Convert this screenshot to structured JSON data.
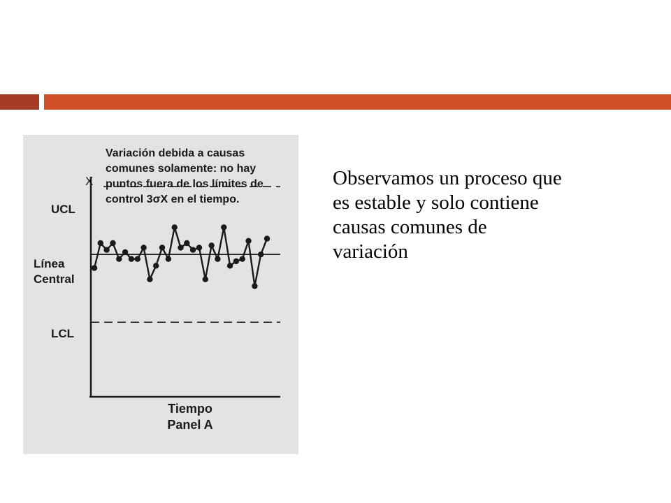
{
  "colors": {
    "accent_dark": "#a63c23",
    "accent": "#cf4e26",
    "scan_background": "#e4e3e2"
  },
  "body_text": [
    "Observamos un proceso que",
    "es estable y solo contiene",
    "causas comunes de",
    "variación"
  ],
  "chart_data": {
    "type": "line",
    "annotation": [
      "Variación debida a causas",
      "comunes solamente: no hay",
      "puntos fuera de los límites de",
      "control 3σX en el tiempo."
    ],
    "ylabel": "X",
    "xlabel": "Tiempo",
    "panel_label": "Panel A",
    "center_line": {
      "label": [
        "Línea",
        "Central"
      ],
      "value": 0
    },
    "ucl": {
      "label": "UCL",
      "value": 3
    },
    "lcl": {
      "label": "LCL",
      "value": -3
    },
    "ylim": [
      -6.3,
      3.5
    ],
    "grid": false,
    "series": [
      {
        "values": [
          -0.6,
          0.5,
          0.2,
          0.5,
          -0.2,
          0.1,
          -0.2,
          -0.2,
          0.3,
          -1.1,
          -0.5,
          0.3,
          -0.2,
          1.2,
          0.3,
          0.5,
          0.2,
          0.3,
          -1.1,
          0.4,
          -0.2,
          1.2,
          -0.5,
          -0.3,
          -0.2,
          0.6,
          -1.4,
          0.0,
          0.7
        ]
      }
    ]
  }
}
